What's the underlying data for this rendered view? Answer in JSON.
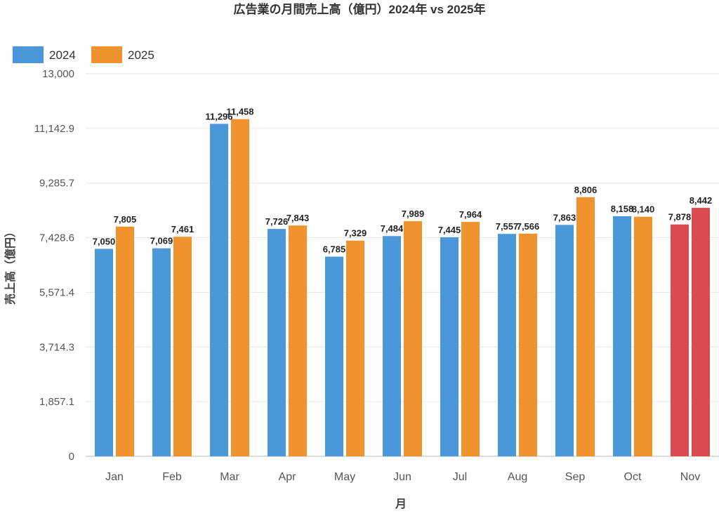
{
  "chart_data": {
    "type": "bar",
    "title": "広告業の月間売上高（億円）2024年 vs 2025年",
    "xlabel": "月",
    "ylabel": "売上高（億円）",
    "ylim": [
      0,
      13000
    ],
    "yticks": [
      "0",
      "1,857.1",
      "3,714.3",
      "5,571.4",
      "7,428.6",
      "9,285.7",
      "11,142.9",
      "13,000"
    ],
    "categories": [
      "Jan",
      "Feb",
      "Mar",
      "Apr",
      "May",
      "Jun",
      "Jul",
      "Aug",
      "Sep",
      "Oct",
      "Nov"
    ],
    "series": [
      {
        "name": "2024",
        "color": "#4a97d9",
        "values": [
          7050,
          7069,
          11296,
          7726,
          6785,
          7484,
          7445,
          7557,
          7863,
          8158,
          7878
        ],
        "labels": [
          "7,050",
          "7,069",
          "11,296",
          "7,726",
          "6,785",
          "7,484",
          "7,445",
          "7,557",
          "7,863",
          "8,158",
          "7,878"
        ]
      },
      {
        "name": "2025",
        "color": "#f0922d",
        "values": [
          7805,
          7461,
          11458,
          7843,
          7329,
          7989,
          7964,
          7566,
          8806,
          8140,
          8442
        ],
        "labels": [
          "7,805",
          "7,461",
          "11,458",
          "7,843",
          "7,329",
          "7,989",
          "7,964",
          "7,566",
          "8,806",
          "8,140",
          "8,442"
        ]
      }
    ],
    "highlight": {
      "category": "Nov",
      "color": "#d94b4f"
    },
    "legend_position": "top-left"
  }
}
